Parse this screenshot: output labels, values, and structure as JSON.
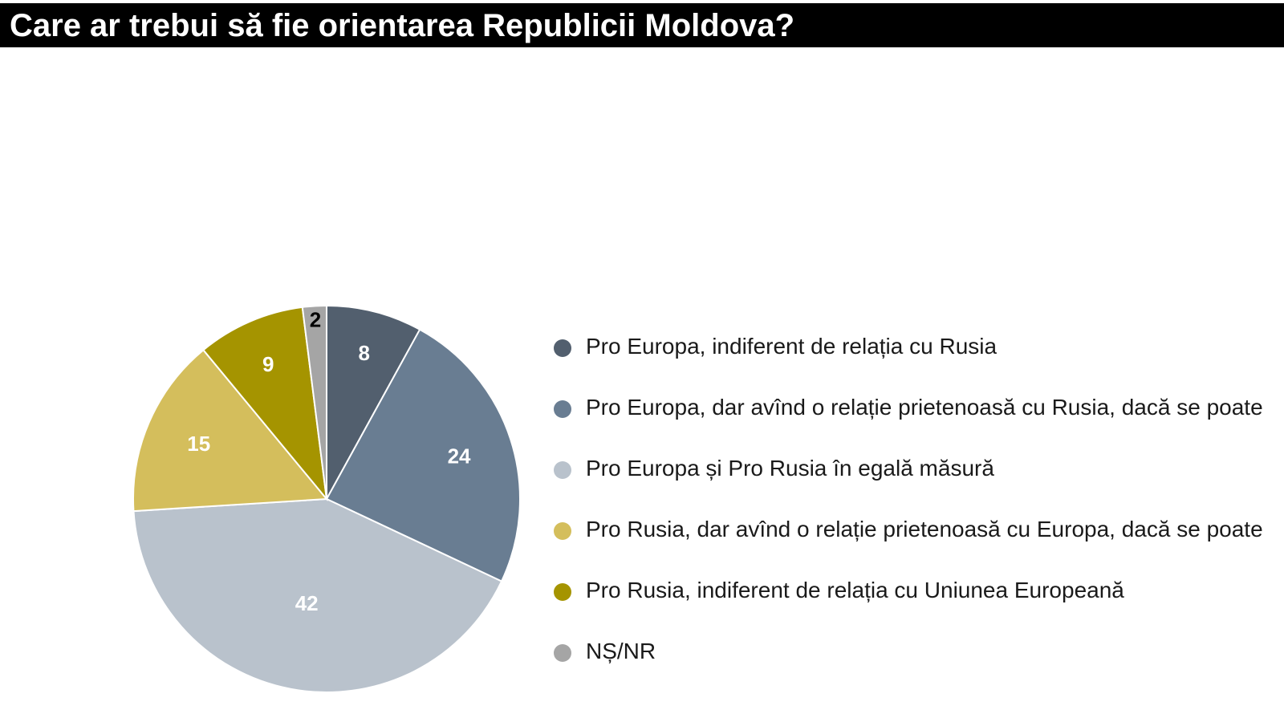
{
  "header": {
    "title": "Care ar trebui să fie orientarea Republicii Moldova?"
  },
  "chart_data": {
    "type": "pie",
    "title": "Care ar trebui să fie orientarea Republicii Moldova?",
    "start_angle": "12 o'clock",
    "direction": "clockwise",
    "legend_position": "right",
    "slices": [
      {
        "label": "Pro Europa, indiferent de relația cu Rusia",
        "value": 8,
        "value_label": "8",
        "color": "#525f6e",
        "label_color": "#ffffff"
      },
      {
        "label": "Pro Europa, dar avînd o relație prietenoasă cu Rusia, dacă se poate",
        "value": 24,
        "value_label": "24",
        "color": "#697d92",
        "label_color": "#ffffff"
      },
      {
        "label": "Pro Europa și Pro Rusia în egală măsură",
        "value": 42,
        "value_label": "42",
        "color": "#b9c2cc",
        "label_color": "#ffffff"
      },
      {
        "label": "Pro Rusia, dar avînd o relație prietenoasă cu Europa, dacă se poate",
        "value": 15,
        "value_label": "15",
        "color": "#d4be5c",
        "label_color": "#ffffff"
      },
      {
        "label": "Pro Rusia, indiferent de relația cu Uniunea Europeană",
        "value": 9,
        "value_label": "9",
        "color": "#a59400",
        "label_color": "#ffffff"
      },
      {
        "label": "NȘ/NR",
        "value": 2,
        "value_label": "2",
        "color": "#a5a5a5",
        "label_color": "#000000"
      }
    ]
  }
}
